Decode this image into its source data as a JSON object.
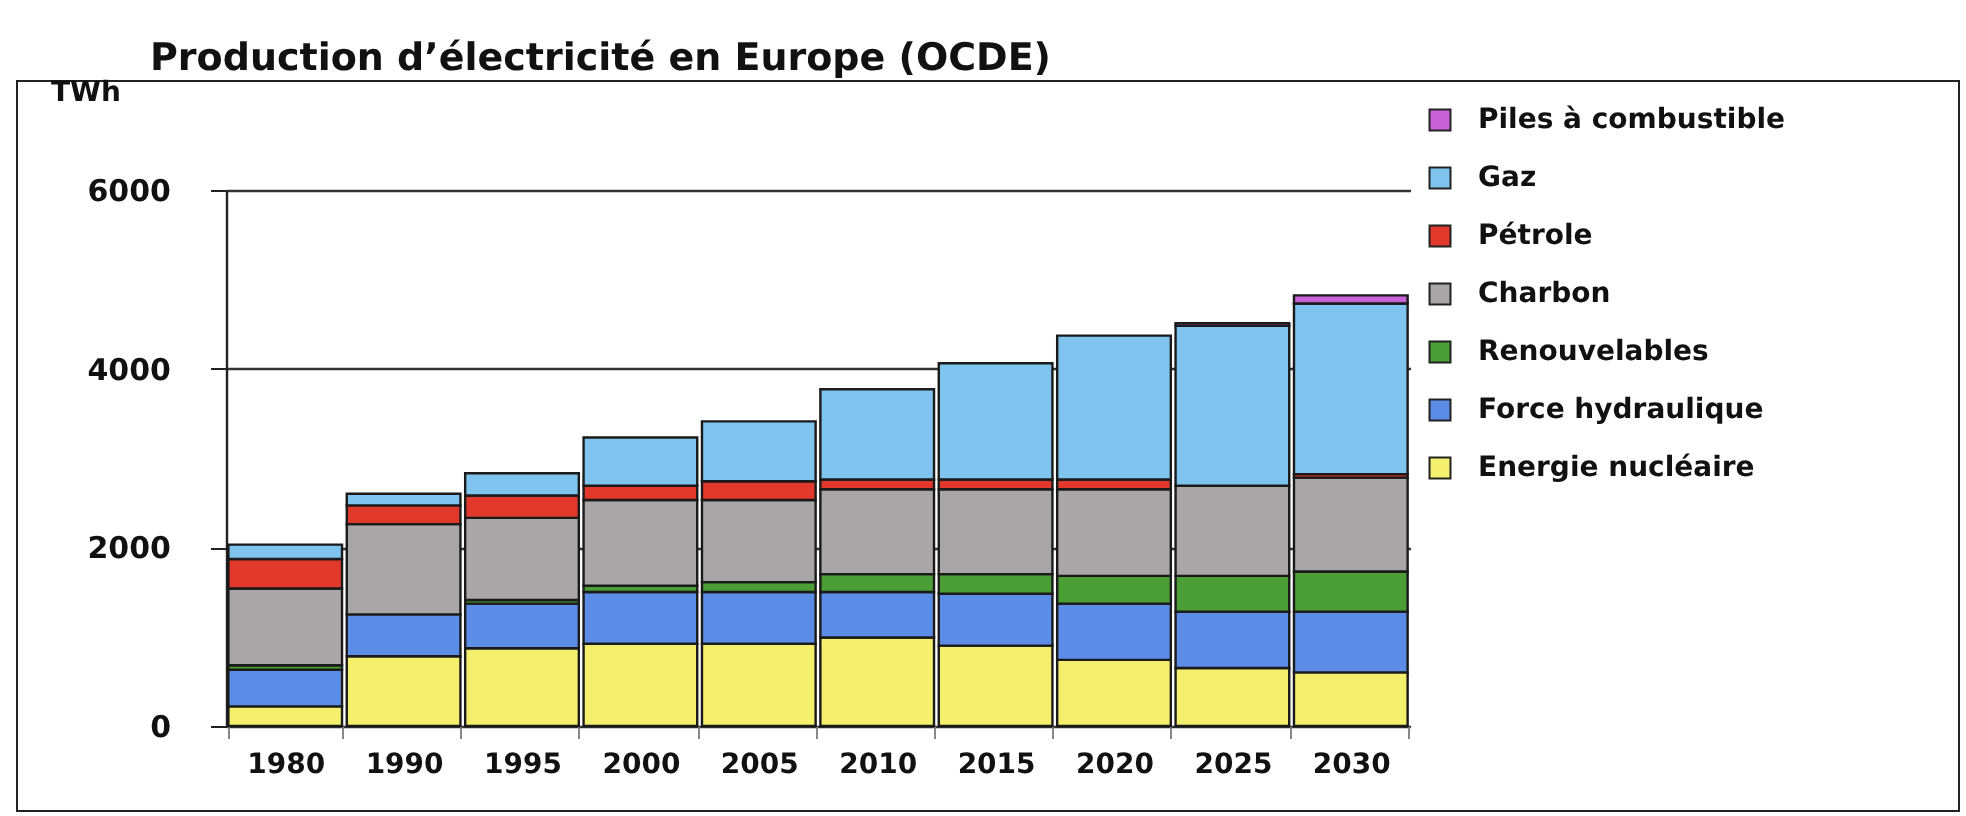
{
  "chart_data": {
    "type": "bar",
    "stacked": true,
    "title": "Production d’électricité en Europe (OCDE)",
    "ylabel": "TWh",
    "categories": [
      "1980",
      "1990",
      "1995",
      "2000",
      "2005",
      "2010",
      "2015",
      "2020",
      "2025",
      "2030"
    ],
    "ylim": [
      0,
      6000
    ],
    "yticks": [
      0,
      2000,
      4000,
      6000
    ],
    "grid": "y",
    "legend": "right",
    "series": [
      {
        "name": "Energie nucléaire",
        "color": "#f5ef6e",
        "values": [
          220,
          780,
          870,
          920,
          920,
          990,
          900,
          740,
          650,
          600
        ]
      },
      {
        "name": "Force hydraulique",
        "color": "#5b8ce6",
        "values": [
          410,
          470,
          500,
          580,
          580,
          510,
          580,
          630,
          630,
          680
        ]
      },
      {
        "name": "Renouvelables",
        "color": "#4a9e35",
        "values": [
          50,
          null,
          40,
          70,
          110,
          200,
          220,
          310,
          400,
          450
        ]
      },
      {
        "name": "Charbon",
        "color": "#a8a6a6",
        "values": [
          860,
          1010,
          920,
          960,
          920,
          950,
          950,
          970,
          1010,
          1050
        ]
      },
      {
        "name": "Pétrole",
        "color": "#e0382a",
        "values": [
          330,
          210,
          250,
          160,
          210,
          110,
          110,
          110,
          null,
          40
        ]
      },
      {
        "name": "Gaz",
        "color": "#7ec4ef",
        "values": [
          160,
          130,
          250,
          540,
          670,
          1010,
          1300,
          1610,
          1790,
          1910
        ]
      },
      {
        "name": "Piles à combustible",
        "color": "#c862d8",
        "values": [
          null,
          null,
          null,
          null,
          null,
          null,
          null,
          null,
          30,
          90
        ]
      }
    ]
  }
}
